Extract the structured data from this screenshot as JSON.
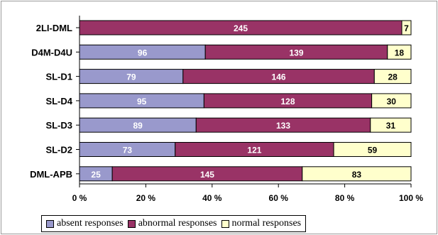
{
  "chart_data": {
    "type": "bar",
    "orientation": "horizontal",
    "stacked": "percent",
    "categories": [
      "2LI-DML",
      "D4M-D4U",
      "SL-D1",
      "SL-D4",
      "SL-D3",
      "SL-D2",
      "DML-APB"
    ],
    "series": [
      {
        "name": "absent responses",
        "color": "#9999cc",
        "label_style": "light",
        "values": [
          0,
          96,
          79,
          95,
          89,
          73,
          25
        ]
      },
      {
        "name": "abnormal responses",
        "color": "#993366",
        "label_style": "light",
        "values": [
          245,
          139,
          146,
          128,
          133,
          121,
          145
        ]
      },
      {
        "name": "normal responses",
        "color": "#ffffcc",
        "label_style": "dark",
        "values": [
          7,
          18,
          28,
          30,
          31,
          59,
          83
        ]
      }
    ],
    "xticks": [
      "0 %",
      "20 %",
      "40 %",
      "60 %",
      "80 %",
      "100 %"
    ],
    "xlim": [
      0,
      100
    ],
    "grid": false,
    "legend_position": "bottom"
  }
}
